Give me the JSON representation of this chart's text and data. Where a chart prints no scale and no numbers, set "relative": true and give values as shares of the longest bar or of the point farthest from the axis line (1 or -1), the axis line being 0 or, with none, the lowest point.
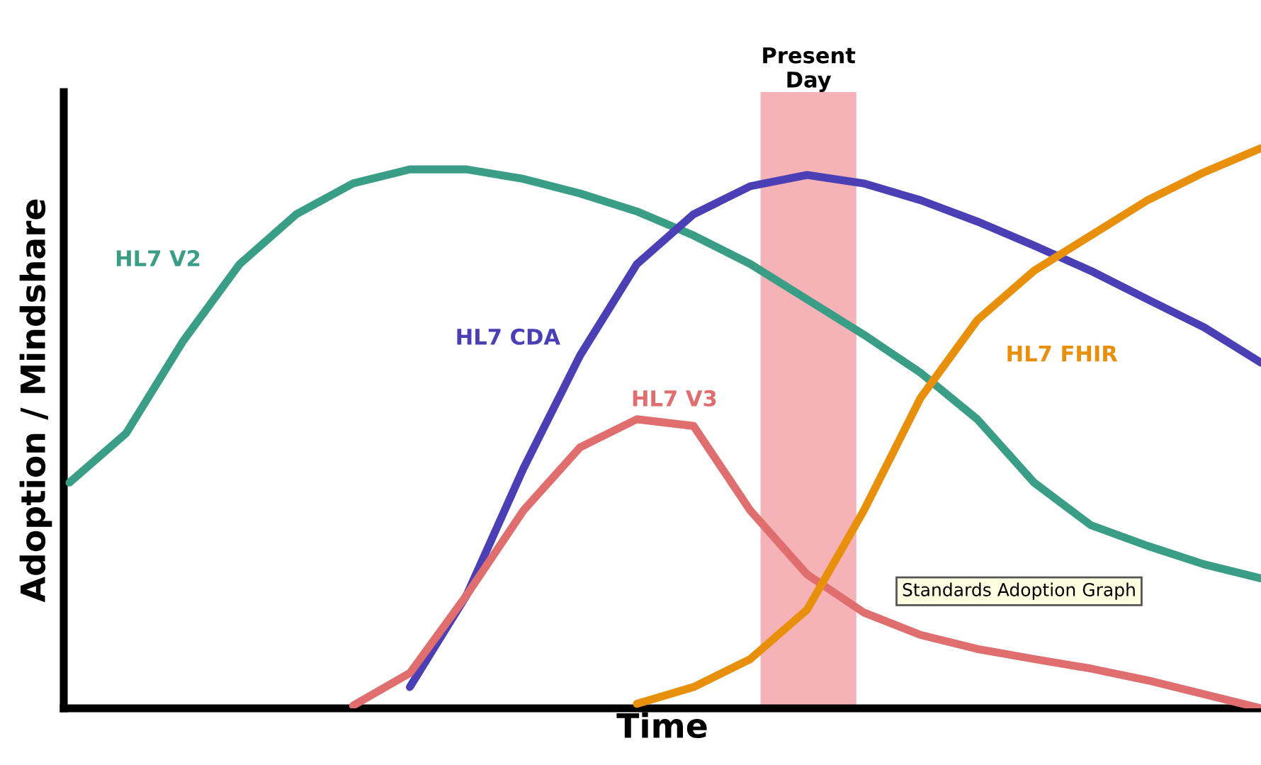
{
  "chart_data": {
    "type": "line",
    "relative": true,
    "xlabel": "Time",
    "ylabel": "Adoption / Mindshare",
    "categories": [
      null,
      null,
      null,
      null,
      null,
      null,
      null,
      null,
      null,
      null,
      null,
      null,
      null,
      null,
      null,
      null,
      null,
      null,
      null,
      null,
      null,
      null
    ],
    "series": [
      {
        "name": "HL7 V2",
        "color": "#3a9e86",
        "values": [
          0.403,
          0.491,
          0.655,
          0.793,
          0.882,
          0.937,
          0.962,
          0.962,
          0.945,
          0.919,
          0.887,
          0.844,
          0.793,
          0.73,
          0.667,
          0.599,
          0.516,
          0.403,
          0.327,
          0.29,
          0.257,
          0.232
        ]
      },
      {
        "name": "HL7 CDA",
        "color": "#4a3fb5",
        "values": [
          null,
          null,
          null,
          null,
          null,
          null,
          0.038,
          0.202,
          0.428,
          0.63,
          0.793,
          0.882,
          0.932,
          0.952,
          0.937,
          0.907,
          0.869,
          0.826,
          0.781,
          0.73,
          0.68,
          0.617
        ]
      },
      {
        "name": "HL7 V3",
        "color": "#e06e6e",
        "values": [
          null,
          null,
          null,
          null,
          null,
          0.005,
          0.063,
          0.202,
          0.353,
          0.466,
          0.516,
          0.504,
          0.353,
          0.239,
          0.171,
          0.131,
          0.106,
          0.088,
          0.071,
          0.05,
          0.025,
          0.0
        ]
      },
      {
        "name": "HL7 FHIR",
        "color": "#e8900c",
        "values": [
          null,
          null,
          null,
          null,
          null,
          null,
          null,
          null,
          null,
          null,
          0.008,
          0.038,
          0.088,
          0.176,
          0.353,
          0.554,
          0.693,
          0.781,
          0.844,
          0.907,
          0.957,
          1.0
        ]
      }
    ],
    "annotations": [
      "Present Day",
      "Standards Adoption Graph"
    ],
    "legend": false
  }
}
